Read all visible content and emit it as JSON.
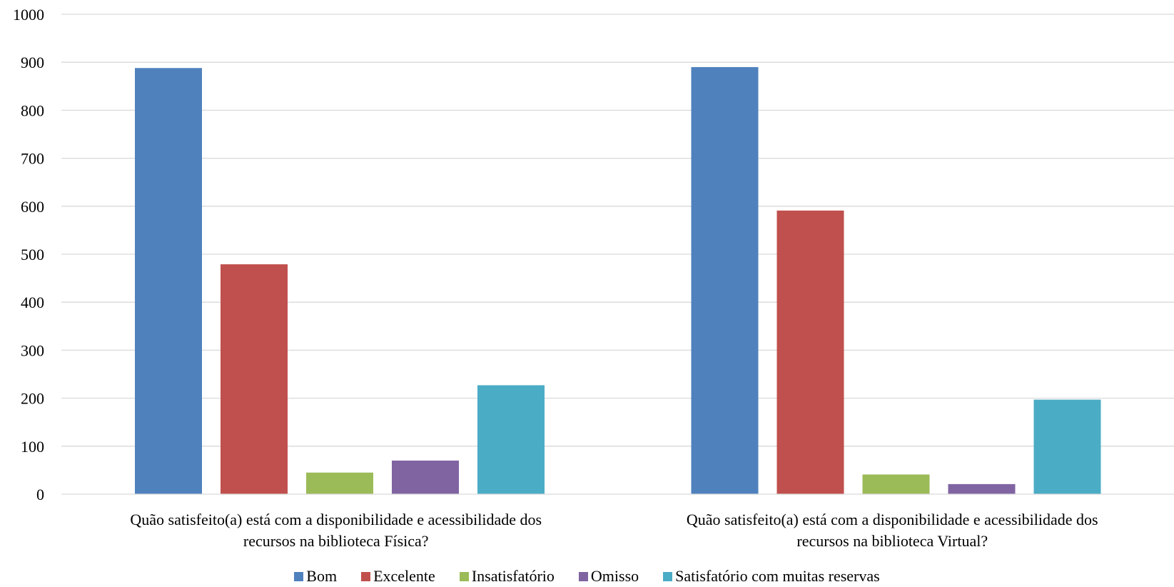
{
  "chart_data": {
    "type": "bar",
    "categories": [
      [
        "Quão satisfeito(a) está com a disponibilidade e acessibilidade dos",
        "recursos na biblioteca Física?"
      ],
      [
        "Quão satisfeito(a) está com a disponibilidade e acessibilidade dos",
        "recursos na biblioteca Virtual?"
      ]
    ],
    "series": [
      {
        "name": "Bom",
        "color": "#4F81BD",
        "values": [
          888,
          890
        ]
      },
      {
        "name": "Excelente",
        "color": "#C0504D",
        "values": [
          479,
          591
        ]
      },
      {
        "name": "Insatisfatório",
        "color": "#9BBB59",
        "values": [
          45,
          41
        ]
      },
      {
        "name": "Omisso",
        "color": "#8064A2",
        "values": [
          70,
          21
        ]
      },
      {
        "name": "Satisfatório com muitas reservas",
        "color": "#4BACC6",
        "values": [
          227,
          197
        ]
      }
    ],
    "yticks": [
      "0",
      "100",
      "200",
      "300",
      "400",
      "500",
      "600",
      "700",
      "800",
      "900",
      "1000"
    ],
    "ylim": [
      0,
      1000
    ],
    "grid": true,
    "legend_position": "bottom"
  }
}
